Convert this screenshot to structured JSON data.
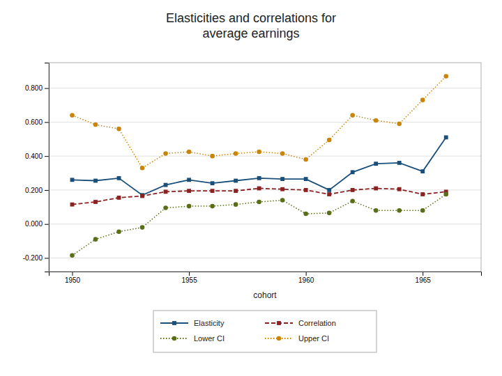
{
  "chart_data": {
    "type": "line",
    "title": "Elasticities and correlations for\naverage earnings",
    "xlabel": "cohort",
    "x": [
      1950,
      1951,
      1952,
      1953,
      1954,
      1955,
      1956,
      1957,
      1958,
      1959,
      1960,
      1961,
      1962,
      1963,
      1964,
      1965,
      1966
    ],
    "xlim": [
      1949.0,
      1967.5
    ],
    "xticks": [
      1950,
      1955,
      1960,
      1965
    ],
    "ylim": [
      -0.28,
      0.95
    ],
    "yticks": [
      {
        "value": -0.2,
        "label": "-0.200"
      },
      {
        "value": 0.0,
        "label": "0.000"
      },
      {
        "value": 0.2,
        "label": "0.200"
      },
      {
        "value": 0.4,
        "label": "0.400"
      },
      {
        "value": 0.6,
        "label": "0.600"
      },
      {
        "value": 0.8,
        "label": "0.800"
      }
    ],
    "grid": true,
    "legend": "bottom",
    "series": [
      {
        "name": "Elasticity",
        "color": "#1a4f7a",
        "marker": "square",
        "line_style": "solid",
        "values": [
          0.26,
          0.255,
          0.27,
          0.17,
          0.23,
          0.26,
          0.24,
          0.255,
          0.27,
          0.265,
          0.265,
          0.2,
          0.305,
          0.355,
          0.36,
          0.31,
          0.51
        ]
      },
      {
        "name": "Correlation",
        "color": "#8b2222",
        "marker": "square",
        "line_style": "dashed",
        "values": [
          0.115,
          0.13,
          0.155,
          0.165,
          0.19,
          0.195,
          0.195,
          0.195,
          0.21,
          0.205,
          0.2,
          0.175,
          0.2,
          0.21,
          0.205,
          0.175,
          0.19
        ]
      },
      {
        "name": "Lower CI",
        "color": "#5a6e1a",
        "marker": "circle",
        "line_style": "dotted",
        "values": [
          -0.185,
          -0.09,
          -0.045,
          -0.02,
          0.095,
          0.105,
          0.105,
          0.115,
          0.13,
          0.14,
          0.06,
          0.065,
          0.135,
          0.08,
          0.08,
          0.08,
          0.175
        ]
      },
      {
        "name": "Upper CI",
        "color": "#c8850a",
        "marker": "circle",
        "line_style": "dotted",
        "values": [
          0.64,
          0.585,
          0.56,
          0.33,
          0.415,
          0.425,
          0.4,
          0.415,
          0.425,
          0.415,
          0.38,
          0.495,
          0.64,
          0.61,
          0.59,
          0.73,
          0.87
        ]
      }
    ]
  }
}
